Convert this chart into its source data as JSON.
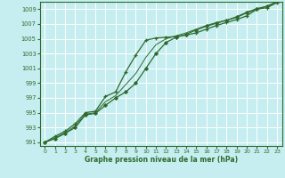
{
  "xlabel": "Graphe pression niveau de la mer (hPa)",
  "background_color": "#c6eef0",
  "grid_color": "#aad4d8",
  "line_color": "#2d6a2d",
  "xlim": [
    -0.5,
    23.5
  ],
  "ylim": [
    990.5,
    1010.0
  ],
  "yticks": [
    991,
    993,
    995,
    997,
    999,
    1001,
    1003,
    1005,
    1007,
    1009
  ],
  "xticks": [
    0,
    1,
    2,
    3,
    4,
    5,
    6,
    7,
    8,
    9,
    10,
    11,
    12,
    13,
    14,
    15,
    16,
    17,
    18,
    19,
    20,
    21,
    22,
    23
  ],
  "s1": [
    991.0,
    991.8,
    992.5,
    993.5,
    995.0,
    995.2,
    997.2,
    997.8,
    1000.5,
    1002.8,
    1004.8,
    1005.1,
    1005.2,
    1005.3,
    1005.5,
    1005.8,
    1006.3,
    1006.8,
    1007.2,
    1007.6,
    1008.1,
    1009.0,
    1009.2,
    1009.9
  ],
  "s2": [
    991.0,
    991.5,
    992.2,
    993.0,
    994.7,
    994.9,
    996.0,
    997.0,
    997.8,
    999.0,
    1001.0,
    1003.0,
    1004.5,
    1005.2,
    1005.6,
    1006.2,
    1006.7,
    1007.1,
    1007.5,
    1007.9,
    1008.5,
    1009.0,
    1009.4,
    1010.0
  ],
  "s3": [
    991.0,
    991.6,
    992.3,
    993.2,
    994.8,
    995.0,
    996.5,
    997.3,
    998.8,
    1000.3,
    1002.5,
    1004.2,
    1005.0,
    1005.4,
    1005.8,
    1006.3,
    1006.8,
    1007.2,
    1007.5,
    1008.0,
    1008.6,
    1009.1,
    1009.4,
    1010.0
  ]
}
